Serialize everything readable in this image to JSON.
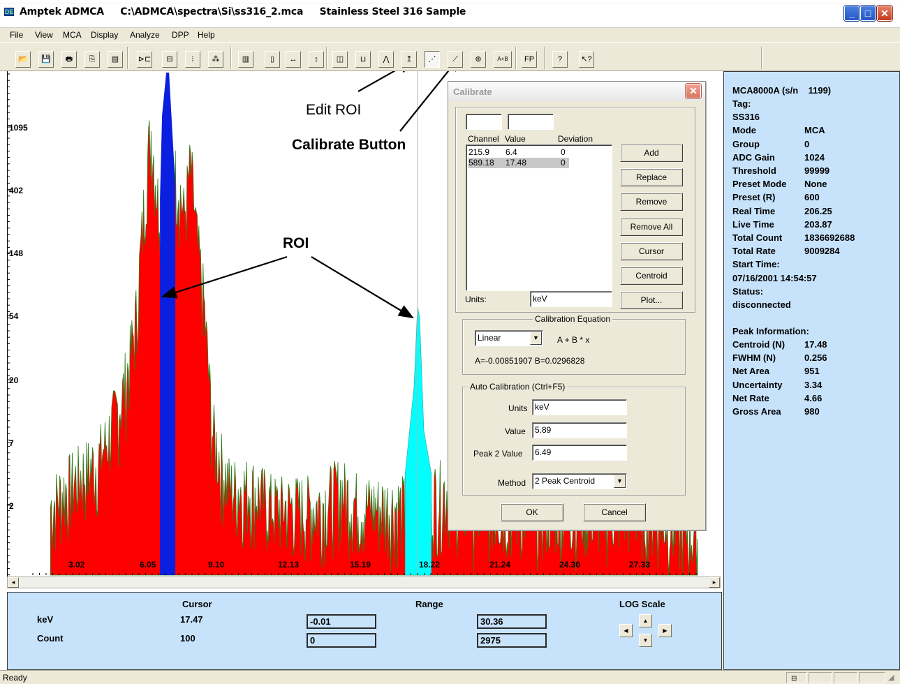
{
  "window": {
    "title": "Amptek ADMCA     C:\\ADMCA\\spectra\\Si\\ss316_2.mca     Stainless Steel 316 Sample",
    "app_icon_glyph": "DE"
  },
  "menu": [
    "File",
    "View",
    "MCA",
    "Display",
    "Analyze",
    "DPP",
    "Help"
  ],
  "toolbar": {
    "buttons": [
      {
        "name": "open-icon",
        "glyph": "📂"
      },
      {
        "name": "save-icon",
        "glyph": "💾"
      },
      {
        "name": "print-icon",
        "glyph": "🖶"
      },
      {
        "name": "copy-icon",
        "glyph": "⎘"
      },
      {
        "name": "report-icon",
        "glyph": "▤"
      },
      {
        "name": "connect-icon",
        "glyph": "⊳⊏"
      },
      {
        "name": "acquire-icon",
        "glyph": "⊟"
      },
      {
        "name": "traffic-light-icon",
        "glyph": "⁝"
      },
      {
        "name": "clear-icon",
        "glyph": "⁂"
      },
      {
        "name": "display-icon",
        "glyph": "▥"
      },
      {
        "name": "info-icon",
        "glyph": "▯"
      },
      {
        "name": "expand-horizontal-icon",
        "glyph": "↔"
      },
      {
        "name": "expand-vertical-icon",
        "glyph": "↕"
      },
      {
        "name": "zoom-box-icon",
        "glyph": "◫"
      },
      {
        "name": "roi-icon",
        "glyph": "⊔"
      },
      {
        "name": "peak-icon",
        "glyph": "⋀"
      },
      {
        "name": "edit-roi-icon",
        "glyph": "↥"
      },
      {
        "name": "calibrate-points-icon",
        "glyph": "⋰"
      },
      {
        "name": "calibrate-icon",
        "glyph": "⟋"
      },
      {
        "name": "peak-search-icon",
        "glyph": "⊕"
      },
      {
        "name": "a-plus-b-icon",
        "glyph": "A+B"
      },
      {
        "name": "fp-icon",
        "glyph": "FP"
      },
      {
        "name": "help-icon",
        "glyph": "?"
      },
      {
        "name": "context-help-icon",
        "glyph": "↖?"
      }
    ]
  },
  "annotations": {
    "edit_roi": "Edit ROI",
    "calibrate_button": "Calibrate Button",
    "roi": "ROI"
  },
  "chart_data": {
    "type": "area",
    "y_scale": "log",
    "y_tick_labels": [
      "1095",
      "402",
      "148",
      "54",
      "20",
      "7",
      "2"
    ],
    "x_tick_labels": [
      "3.02",
      "6.05",
      "9.10",
      "12.13",
      "15.19",
      "18.22",
      "21.24",
      "24.30",
      "27.33"
    ],
    "x_unit": "keV",
    "xlim": [
      -0.01,
      30.36
    ],
    "ylim": [
      0,
      2975
    ],
    "series": [
      {
        "role": "spectrum",
        "color": "#ff0000",
        "edge_color": "#2e7d1a",
        "x": [
          0.8,
          1.5,
          2.2,
          2.9,
          3.3,
          3.7,
          4.1,
          4.4,
          4.7,
          5.0,
          5.2,
          5.4,
          5.7,
          6.2,
          6.6,
          6.9,
          7.2,
          7.5,
          7.8,
          8.2,
          8.6,
          9.0,
          10.0,
          11.0,
          12.0,
          13.0,
          14.0,
          15.0,
          16.0,
          17.0,
          19.0,
          20.0,
          22.0,
          24.0,
          26.0,
          28.0,
          30.0
        ],
        "y": [
          3,
          4,
          5,
          6,
          8,
          12,
          18,
          30,
          60,
          250,
          700,
          1200,
          400,
          500,
          600,
          300,
          700,
          200,
          80,
          10,
          6,
          4,
          4,
          3,
          3,
          3,
          4,
          3,
          3,
          3,
          4,
          3,
          3,
          3,
          3,
          3,
          2
        ]
      },
      {
        "role": "roi-1",
        "color": "#0a1fe0",
        "x": [
          5.8,
          6.5
        ],
        "peak_y": 2975
      },
      {
        "role": "roi-2",
        "color": "#00ffff",
        "x": [
          17.0,
          18.2
        ],
        "peak_y": 72
      }
    ]
  },
  "bottom_panel": {
    "cursor_header": "Cursor",
    "range_header": "Range",
    "log_scale_header": "LOG Scale",
    "kev_label": "keV",
    "count_label": "Count",
    "cursor_kev": "17.47",
    "cursor_count": "100",
    "range_kev_min": "-0.01",
    "range_kev_max": "30.36",
    "range_count_min": "0",
    "range_count_max": "2975"
  },
  "info_panel": {
    "device": "MCA8000A (s/n    1199)",
    "rows": [
      {
        "label": "Tag:",
        "value": ""
      },
      {
        "label": "SS316",
        "value": ""
      },
      {
        "label": "Mode",
        "value": "MCA"
      },
      {
        "label": "Group",
        "value": "0"
      },
      {
        "label": "ADC Gain",
        "value": "1024"
      },
      {
        "label": "Threshold",
        "value": "99999"
      },
      {
        "label": "Preset Mode",
        "value": "None"
      },
      {
        "label": "Preset (R)",
        "value": "600"
      },
      {
        "label": "Real Time",
        "value": "206.25"
      },
      {
        "label": "Live Time",
        "value": "203.87"
      },
      {
        "label": "Total Count",
        "value": "1836692688"
      },
      {
        "label": "Total Rate",
        "value": "9009284"
      },
      {
        "label": "Start Time:",
        "value": ""
      },
      {
        "label": "07/16/2001 14:54:57",
        "value": ""
      },
      {
        "label": "Status:",
        "value": ""
      },
      {
        "label": "disconnected",
        "value": ""
      }
    ],
    "peak_header": "Peak Information:",
    "peak_rows": [
      {
        "label": "Centroid (N)",
        "value": "17.48"
      },
      {
        "label": "FWHM (N)",
        "value": "0.256"
      },
      {
        "label": "Net Area",
        "value": "951"
      },
      {
        "label": "Uncertainty",
        "value": "3.34"
      },
      {
        "label": "Net Rate",
        "value": "4.66"
      },
      {
        "label": "Gross Area",
        "value": "980"
      }
    ]
  },
  "dialog": {
    "title": "Calibrate",
    "list_headers": {
      "channel": "Channel",
      "value": "Value",
      "deviation": "Deviation"
    },
    "list_rows": [
      {
        "channel": "215.9",
        "value": "6.4",
        "deviation": "0",
        "selected": false
      },
      {
        "channel": "589.18",
        "value": "17.48",
        "deviation": "0",
        "selected": true
      }
    ],
    "buttons": {
      "add": "Add",
      "replace": "Replace",
      "remove": "Remove",
      "remove_all": "Remove All",
      "cursor": "Cursor",
      "centroid": "Centroid",
      "plot": "Plot...",
      "ok": "OK",
      "cancel": "Cancel"
    },
    "units_label": "Units:",
    "units_value": "keV",
    "equation_legend": "Calibration Equation",
    "equation_type": "Linear",
    "equation_form": "A  +  B * x",
    "coefficients": "A=-0.00851907  B=0.0296828",
    "auto_legend": "Auto Calibration (Ctrl+F5)",
    "auto_units_label": "Units",
    "auto_units_value": "keV",
    "auto_value_label": "Value",
    "auto_value": "5.89",
    "peak2_label": "Peak 2 Value",
    "peak2_value": "6.49",
    "method_label": "Method",
    "method_value": "2 Peak Centroid"
  },
  "status": {
    "text": "Ready"
  }
}
